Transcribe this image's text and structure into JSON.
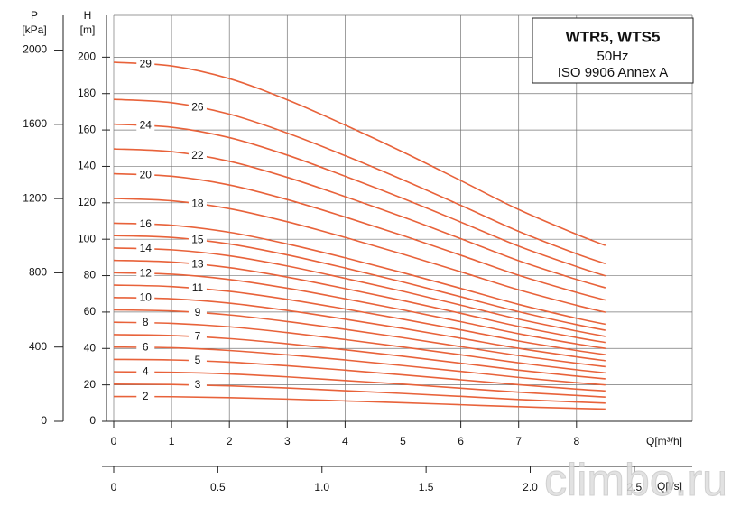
{
  "chart_data": {
    "type": "line",
    "title": "WTR5, WTS5",
    "subtitle": "50Hz",
    "annotation": "ISO 9906  Annex A",
    "ylabel": "H",
    "yunit": "[m]",
    "y2label": "P",
    "y2unit": "[kPa]",
    "xlabel": "Q[m³/h]",
    "x2label": "Q[l/s]",
    "watermark": "climbo.ru",
    "grid": true,
    "xlim": [
      0,
      10
    ],
    "xticks": [
      0,
      1,
      2,
      3,
      4,
      5,
      6,
      7,
      8
    ],
    "ylim": [
      0,
      220
    ],
    "yticks": [
      0,
      20,
      40,
      60,
      80,
      100,
      120,
      140,
      160,
      180,
      200
    ],
    "y2lim": [
      0,
      2158.2
    ],
    "y2ticks": [
      0,
      400,
      800,
      1200,
      1600,
      2000
    ],
    "x2lim": [
      0,
      2.7778
    ],
    "x2ticks": [
      0,
      0.5,
      {
        "value": 1,
        "label": "1.0"
      },
      1.5,
      {
        "value": 2,
        "label": "2.0"
      },
      2.5
    ],
    "x": [
      0,
      1,
      2,
      3,
      4,
      5,
      6,
      7,
      8,
      8.5
    ],
    "series": [
      {
        "name": "2",
        "color": "#e8623a",
        "values": [
          13.6,
          13.5,
          13.0,
          12.2,
          11.2,
          10.2,
          9.1,
          8.0,
          7.1,
          6.7
        ]
      },
      {
        "name": "3",
        "color": "#e8623a",
        "values": [
          20.4,
          20.2,
          19.5,
          18.3,
          16.8,
          15.3,
          13.7,
          12.0,
          10.6,
          10.0
        ]
      },
      {
        "name": "4",
        "color": "#e8623a",
        "values": [
          27.2,
          26.9,
          26.0,
          24.4,
          22.4,
          20.4,
          18.2,
          16.0,
          14.2,
          13.3
        ]
      },
      {
        "name": "5",
        "color": "#e8623a",
        "values": [
          34.0,
          33.7,
          32.5,
          30.5,
          28.1,
          25.5,
          22.8,
          20.1,
          17.7,
          16.7
        ]
      },
      {
        "name": "6",
        "color": "#e8623a",
        "values": [
          40.8,
          40.4,
          38.9,
          36.5,
          33.7,
          30.6,
          27.4,
          24.1,
          21.2,
          20.0
        ]
      },
      {
        "name": "7",
        "color": "#e8623a",
        "values": [
          47.6,
          47.1,
          45.4,
          42.6,
          39.3,
          35.7,
          31.9,
          28.1,
          24.8,
          23.3
        ]
      },
      {
        "name": "8",
        "color": "#e8623a",
        "values": [
          54.4,
          53.8,
          51.9,
          48.7,
          44.9,
          40.8,
          36.5,
          32.1,
          28.3,
          26.6
        ]
      },
      {
        "name": "9",
        "color": "#e8623a",
        "values": [
          61.2,
          60.6,
          58.4,
          54.8,
          50.5,
          45.9,
          41.0,
          36.1,
          31.9,
          30.0
        ]
      },
      {
        "name": "10",
        "color": "#e8623a",
        "values": [
          68.0,
          67.3,
          64.9,
          60.9,
          56.1,
          51.0,
          45.6,
          40.1,
          35.4,
          33.3
        ]
      },
      {
        "name": "11",
        "color": "#e8623a",
        "values": [
          74.8,
          74.0,
          71.4,
          67.0,
          61.7,
          56.1,
          50.2,
          44.1,
          38.9,
          36.6
        ]
      },
      {
        "name": "12",
        "color": "#e8623a",
        "values": [
          81.6,
          80.8,
          77.9,
          73.1,
          67.3,
          61.2,
          54.7,
          48.1,
          42.5,
          40.0
        ]
      },
      {
        "name": "13",
        "color": "#e8623a",
        "values": [
          88.4,
          87.5,
          84.4,
          79.2,
          72.9,
          66.3,
          59.3,
          52.1,
          46.0,
          43.3
        ]
      },
      {
        "name": "14",
        "color": "#e8623a",
        "values": [
          95.2,
          94.2,
          90.9,
          85.3,
          78.5,
          71.4,
          63.8,
          56.1,
          49.6,
          46.6
        ]
      },
      {
        "name": "15",
        "color": "#e8623a",
        "values": [
          102.0,
          101.0,
          97.4,
          91.4,
          84.2,
          76.5,
          68.4,
          60.2,
          53.1,
          50.0
        ]
      },
      {
        "name": "16",
        "color": "#e8623a",
        "values": [
          108.8,
          107.7,
          103.8,
          97.4,
          89.8,
          81.6,
          73.0,
          64.2,
          56.6,
          53.3
        ]
      },
      {
        "name": "18",
        "color": "#e8623a",
        "values": [
          122.4,
          121.1,
          116.8,
          109.6,
          101.0,
          91.8,
          82.1,
          72.2,
          63.7,
          59.9
        ]
      },
      {
        "name": "20",
        "color": "#e8623a",
        "values": [
          136.0,
          134.6,
          129.8,
          121.8,
          112.2,
          102.0,
          91.2,
          80.2,
          70.8,
          66.6
        ]
      },
      {
        "name": "22",
        "color": "#e8623a",
        "values": [
          149.6,
          148.1,
          142.8,
          134.0,
          123.4,
          112.2,
          100.3,
          88.2,
          77.9,
          73.3
        ]
      },
      {
        "name": "24",
        "color": "#e8623a",
        "values": [
          163.2,
          161.5,
          155.8,
          146.2,
          134.6,
          122.4,
          109.4,
          96.2,
          85.0,
          79.9
        ]
      },
      {
        "name": "26",
        "color": "#e8623a",
        "values": [
          176.8,
          175.0,
          168.7,
          158.3,
          145.9,
          132.6,
          118.6,
          104.3,
          92.0,
          86.6
        ]
      },
      {
        "name": "29",
        "color": "#e8623a",
        "values": [
          197.2,
          195.2,
          188.2,
          176.6,
          162.7,
          147.9,
          132.2,
          116.3,
          102.7,
          96.6
        ]
      }
    ]
  }
}
